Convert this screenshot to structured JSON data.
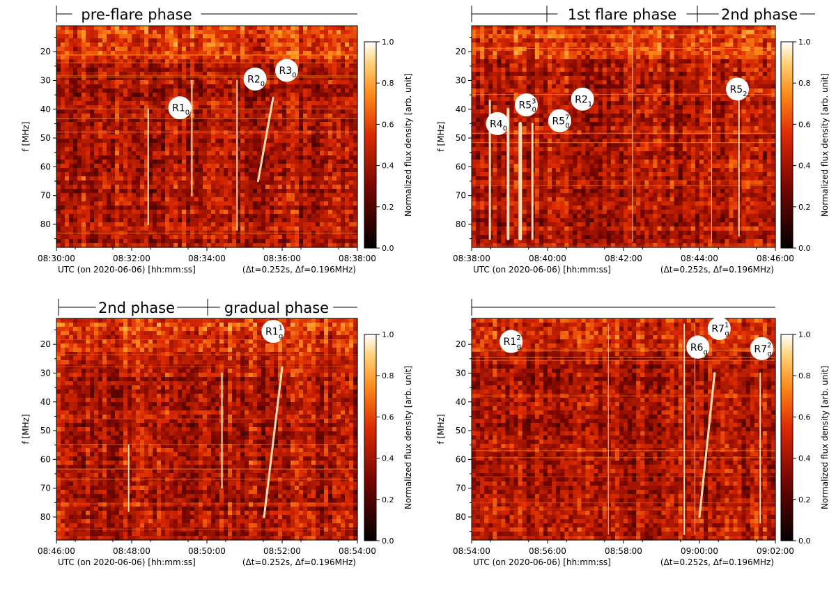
{
  "chart_data": [
    {
      "type": "heatmap",
      "panel": "top-left",
      "phase_labels": [
        "pre-flare phase"
      ],
      "x_ticks": [
        "08:30:00",
        "08:32:00",
        "08:34:00",
        "08:36:00",
        "08:38:00"
      ],
      "xlabel_main": "UTC (on 2020-06-06) [hh:mm:ss]",
      "xlabel_res": "(Δt=0.252s, Δf=0.196MHz)",
      "ylabel": "f [MHz]",
      "y_ticks": [
        20,
        30,
        40,
        50,
        60,
        70,
        80
      ],
      "ylim": [
        88,
        11
      ],
      "colorbar": {
        "label": "Normalized flux density [arb. unit]",
        "ticks": [
          "0.0",
          "0.2",
          "0.4",
          "0.6",
          "0.8",
          "1.0"
        ],
        "range": [
          0,
          1
        ]
      },
      "annotations": [
        {
          "base": "R1",
          "sub": "0",
          "sup": "",
          "t": 0.41,
          "f": 39.5
        },
        {
          "base": "R2",
          "sub": "0",
          "sup": "",
          "t": 0.66,
          "f": 29.5
        },
        {
          "base": "R3",
          "sub": "0",
          "sup": "",
          "t": 0.765,
          "f": 26.5
        }
      ]
    },
    {
      "type": "heatmap",
      "panel": "top-right",
      "phase_labels": [
        "1st flare phase",
        "2nd phase"
      ],
      "x_ticks": [
        "08:38:00",
        "08:40:00",
        "08:42:00",
        "08:44:00",
        "08:46:00"
      ],
      "xlabel_main": "UTC (on 2020-06-06) [hh:mm:ss]",
      "xlabel_res": "(Δt=0.252s, Δf=0.196MHz)",
      "ylabel": "f [MHz]",
      "y_ticks": [
        20,
        30,
        40,
        50,
        60,
        70,
        80
      ],
      "ylim": [
        88,
        11
      ],
      "colorbar": {
        "label": "Normalized flux density [arb. unit]",
        "ticks": [
          "0.0",
          "0.2",
          "0.4",
          "0.6",
          "0.8",
          "1.0"
        ],
        "range": [
          0,
          1
        ]
      },
      "annotations": [
        {
          "base": "R4",
          "sub": "0",
          "sup": "",
          "t": 0.085,
          "f": 45
        },
        {
          "base": "R5",
          "sub": "0",
          "sup": "3",
          "t": 0.18,
          "f": 38.5
        },
        {
          "base": "R5",
          "sub": "0",
          "sup": "7",
          "t": 0.29,
          "f": 44
        },
        {
          "base": "R2",
          "sub": "1",
          "sup": "",
          "t": 0.365,
          "f": 36.5
        },
        {
          "base": "R5",
          "sub": "2",
          "sup": "",
          "t": 0.875,
          "f": 33
        }
      ]
    },
    {
      "type": "heatmap",
      "panel": "bottom-left",
      "phase_labels": [
        "2nd phase",
        "gradual phase"
      ],
      "x_ticks": [
        "08:46:00",
        "08:48:00",
        "08:50:00",
        "08:52:00",
        "08:54:00"
      ],
      "xlabel_main": "UTC (on 2020-06-06) [hh:mm:ss]",
      "xlabel_res": "(Δt=0.252s, Δf=0.196MHz)",
      "ylabel": "f [MHz]",
      "y_ticks": [
        20,
        30,
        40,
        50,
        60,
        70,
        80
      ],
      "ylim": [
        88,
        11
      ],
      "colorbar": {
        "label": "Normalized flux density [arb. unit]",
        "ticks": [
          "0.0",
          "0.2",
          "0.4",
          "0.6",
          "0.8",
          "1.0"
        ],
        "range": [
          0,
          1
        ]
      },
      "annotations": [
        {
          "base": "R1",
          "sub": "g",
          "sup": "1",
          "t": 0.72,
          "f": 15.5
        }
      ]
    },
    {
      "type": "heatmap",
      "panel": "bottom-right",
      "phase_labels": [],
      "x_ticks": [
        "08:54:00",
        "08:56:00",
        "08:58:00",
        "09:00:00",
        "09:02:00"
      ],
      "xlabel_main": "UTC (on 2020-06-06) [hh:mm:ss]",
      "xlabel_res": "(Δt=0.252s, Δf=0.196MHz)",
      "ylabel": "f [MHz]",
      "y_ticks": [
        20,
        30,
        40,
        50,
        60,
        70,
        80
      ],
      "ylim": [
        88,
        11
      ],
      "colorbar": {
        "label": "Normalized flux density [arb. unit]",
        "ticks": [
          "0.0",
          "0.2",
          "0.4",
          "0.6",
          "0.8",
          "1.0"
        ],
        "range": [
          0,
          1
        ]
      },
      "annotations": [
        {
          "base": "R1",
          "sub": "g",
          "sup": "2",
          "t": 0.13,
          "f": 19
        },
        {
          "base": "R7",
          "sub": "g",
          "sup": "1",
          "t": 0.815,
          "f": 14.5
        },
        {
          "base": "R6",
          "sub": "g",
          "sup": "",
          "t": 0.745,
          "f": 21
        },
        {
          "base": "R7",
          "sub": "g",
          "sup": "2",
          "t": 0.955,
          "f": 21.5
        }
      ]
    }
  ]
}
